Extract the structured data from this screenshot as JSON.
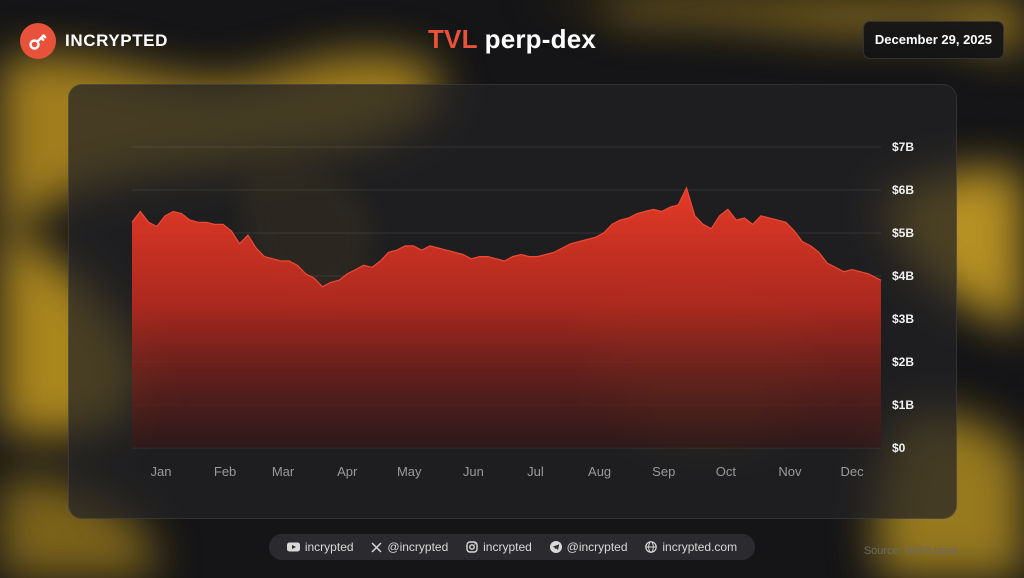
{
  "brand": {
    "name": "INCRYPTED"
  },
  "title": {
    "accent": "TVL",
    "rest": " perp-dex"
  },
  "date": "December 29, 2025",
  "colors": {
    "accent": "#e8523a",
    "area_top": "#e03a28",
    "background_yellow": "#caa024",
    "card": "#222226"
  },
  "footer": {
    "youtube": {
      "icon": "youtube-icon",
      "label": "incrypted"
    },
    "x": {
      "icon": "x-icon",
      "label": "@incrypted"
    },
    "instagram": {
      "icon": "instagram-icon",
      "label": "incrypted"
    },
    "telegram": {
      "icon": "telegram-icon",
      "label": "@incrypted"
    },
    "website": {
      "icon": "globe-icon",
      "label": "incrypted.com"
    }
  },
  "source": "Source: DeFiLlama",
  "chart_data": {
    "type": "area",
    "title": "TVL perp-dex",
    "xlabel": "",
    "ylabel": "",
    "x_labels": [
      "Jan",
      "Feb",
      "Mar",
      "Apr",
      "May",
      "Jun",
      "Jul",
      "Aug",
      "Sep",
      "Oct",
      "Nov",
      "Dec"
    ],
    "y_ticks": [
      {
        "value": 0,
        "label": "$0"
      },
      {
        "value": 1,
        "label": "$1B"
      },
      {
        "value": 2,
        "label": "$2B"
      },
      {
        "value": 3,
        "label": "$3B"
      },
      {
        "value": 4,
        "label": "$4B"
      },
      {
        "value": 5,
        "label": "$5B"
      },
      {
        "value": 6,
        "label": "$6B"
      },
      {
        "value": 7,
        "label": "$7B"
      }
    ],
    "ylim": [
      0,
      7
    ],
    "y_unit": "billion USD",
    "grid": true,
    "legend": "none",
    "series": [
      {
        "x": [
          "2025-01-01",
          "2025-01-05",
          "2025-01-09",
          "2025-01-13",
          "2025-01-17",
          "2025-01-21",
          "2025-01-25",
          "2025-01-29",
          "2025-02-02",
          "2025-02-06",
          "2025-02-10",
          "2025-02-14",
          "2025-02-18",
          "2025-02-22",
          "2025-02-26",
          "2025-03-02",
          "2025-03-06",
          "2025-03-10",
          "2025-03-14",
          "2025-03-18",
          "2025-03-22",
          "2025-03-26",
          "2025-03-30",
          "2025-04-03",
          "2025-04-07",
          "2025-04-11",
          "2025-04-15",
          "2025-04-19",
          "2025-04-23",
          "2025-04-27",
          "2025-05-01",
          "2025-05-05",
          "2025-05-09",
          "2025-05-13",
          "2025-05-17",
          "2025-05-21",
          "2025-05-25",
          "2025-05-29",
          "2025-06-02",
          "2025-06-06",
          "2025-06-10",
          "2025-06-14",
          "2025-06-18",
          "2025-06-22",
          "2025-06-26",
          "2025-06-30",
          "2025-07-04",
          "2025-07-08",
          "2025-07-12",
          "2025-07-16",
          "2025-07-20",
          "2025-07-24",
          "2025-07-28",
          "2025-08-01",
          "2025-08-05",
          "2025-08-09",
          "2025-08-13",
          "2025-08-17",
          "2025-08-21",
          "2025-08-25",
          "2025-08-29",
          "2025-09-02",
          "2025-09-06",
          "2025-09-10",
          "2025-09-14",
          "2025-09-18",
          "2025-09-22",
          "2025-09-26",
          "2025-09-30",
          "2025-10-04",
          "2025-10-08",
          "2025-10-12",
          "2025-10-16",
          "2025-10-20",
          "2025-10-24",
          "2025-10-28",
          "2025-11-01",
          "2025-11-05",
          "2025-11-09",
          "2025-11-13",
          "2025-11-17",
          "2025-11-21",
          "2025-11-25",
          "2025-11-29",
          "2025-12-03",
          "2025-12-07",
          "2025-12-11",
          "2025-12-15",
          "2025-12-19",
          "2025-12-23",
          "2025-12-29"
        ],
        "values": [
          5.25,
          5.5,
          5.25,
          5.15,
          5.4,
          5.5,
          5.45,
          5.3,
          5.25,
          5.25,
          5.2,
          5.2,
          5.05,
          4.75,
          4.95,
          4.65,
          4.45,
          4.4,
          4.35,
          4.35,
          4.25,
          4.05,
          3.95,
          3.75,
          3.85,
          3.9,
          4.05,
          4.15,
          4.25,
          4.2,
          4.35,
          4.55,
          4.6,
          4.7,
          4.7,
          4.6,
          4.7,
          4.65,
          4.6,
          4.55,
          4.5,
          4.4,
          4.45,
          4.45,
          4.4,
          4.35,
          4.45,
          4.5,
          4.45,
          4.45,
          4.5,
          4.55,
          4.65,
          4.75,
          4.8,
          4.85,
          4.9,
          5.0,
          5.2,
          5.3,
          5.35,
          5.45,
          5.5,
          5.55,
          5.5,
          5.6,
          5.65,
          6.05,
          5.4,
          5.2,
          5.1,
          5.4,
          5.55,
          5.3,
          5.35,
          5.2,
          5.4,
          5.35,
          5.3,
          5.25,
          5.05,
          4.8,
          4.7,
          4.55,
          4.3,
          4.2,
          4.1,
          4.15,
          4.1,
          4.05,
          3.9
        ]
      }
    ]
  }
}
